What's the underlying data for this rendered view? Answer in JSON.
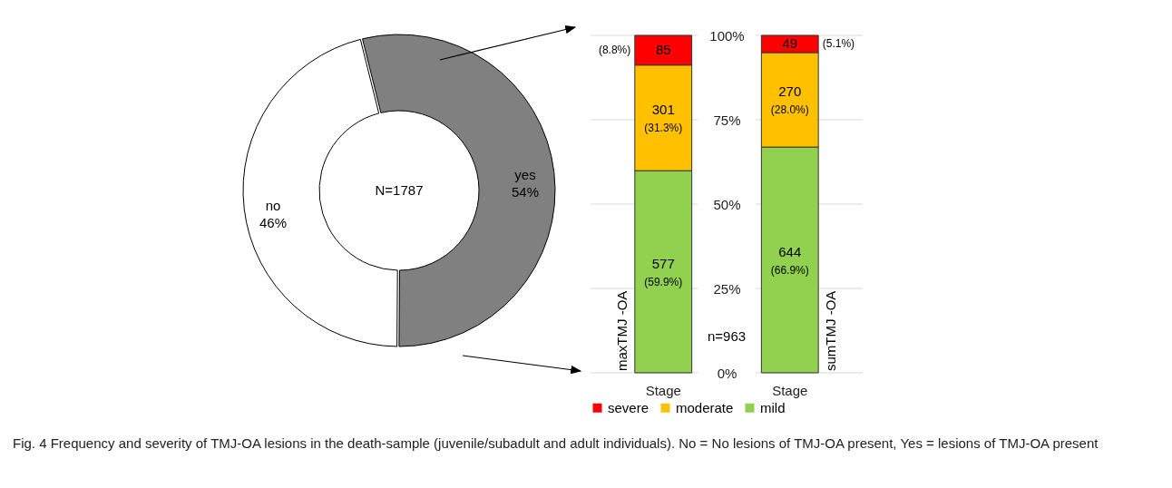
{
  "chart_data": [
    {
      "type": "donut",
      "categories": [
        "yes",
        "no"
      ],
      "values": [
        54,
        46
      ],
      "colors": [
        "#808080",
        "#ffffff"
      ],
      "value_labels": [
        "54%",
        "46%"
      ],
      "annotations": [
        "N=1787"
      ]
    },
    {
      "type": "bar",
      "stacked": true,
      "categories": [
        "Stage",
        "Stage"
      ],
      "series": [
        {
          "name": "mild",
          "color": "#92d050",
          "values": [
            59.9,
            66.9
          ],
          "value_labels": [
            "577 (59.9%)",
            "644 (66.9%)"
          ]
        },
        {
          "name": "moderate",
          "color": "#ffc000",
          "values": [
            31.3,
            28.0
          ],
          "value_labels": [
            "301 (31.3%)",
            "270 (28.0%)"
          ]
        },
        {
          "name": "severe",
          "color": "#ff0000",
          "values": [
            8.8,
            5.1
          ],
          "value_labels": [
            "(8.8%) 85",
            "49 (5.1%)"
          ]
        }
      ],
      "ylim": [
        0,
        100
      ],
      "yticks": [
        {
          "value": 0,
          "label": "0%"
        },
        {
          "value": 25,
          "label": "25%"
        },
        {
          "value": 50,
          "label": "50%"
        },
        {
          "value": 75,
          "label": "75%"
        },
        {
          "value": 100,
          "label": "100%"
        }
      ],
      "grid": "y",
      "legend": "bottom",
      "annotations": [
        "maxTMJ -OA",
        "sumTMJ -OA",
        "n=963",
        "Fig. 4 Frequency and severity of TMJ-OA lesions in the death-sample (juvenile/subadult and adult individuals). No = No lesions of TMJ-OA present, Yes = lesions of TMJ-OA present"
      ]
    }
  ]
}
